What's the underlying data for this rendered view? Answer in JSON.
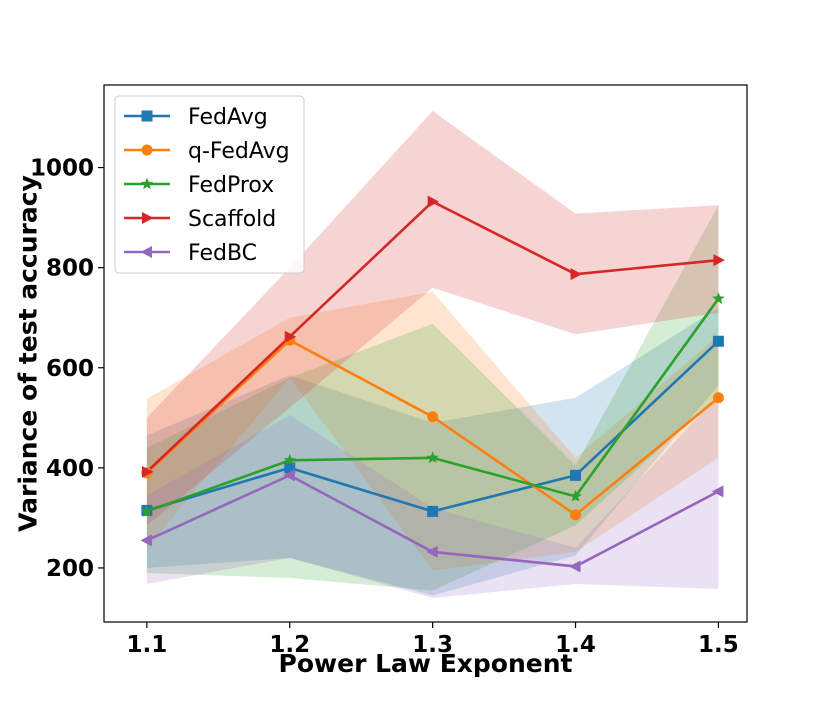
{
  "chart_data": {
    "type": "line",
    "title": "",
    "xlabel": "Power Law Exponent",
    "ylabel": "Variance of test accuracy",
    "x": [
      1.1,
      1.2,
      1.3,
      1.4,
      1.5
    ],
    "x_tick_labels": [
      "1.1",
      "1.2",
      "1.3",
      "1.4",
      "1.5"
    ],
    "y_ticks": [
      200,
      400,
      600,
      800,
      1000
    ],
    "y_tick_labels": [
      "200",
      "400",
      "600",
      "800",
      "1000"
    ],
    "xlim": [
      1.07,
      1.52
    ],
    "ylim": [
      92,
      1165
    ],
    "grid": false,
    "legend_position": "top-left",
    "series": [
      {
        "name": "FedAvg",
        "color": "#1f77b4",
        "marker": "square",
        "values": [
          315,
          400,
          313,
          385,
          653
        ],
        "band_upper": [
          465,
          585,
          490,
          540,
          720
        ],
        "band_lower": [
          200,
          220,
          145,
          225,
          565
        ]
      },
      {
        "name": "q-FedAvg",
        "color": "#ff7f0e",
        "marker": "circle",
        "values": [
          390,
          655,
          502,
          306,
          540
        ],
        "band_upper": [
          538,
          700,
          752,
          420,
          665
        ],
        "band_lower": [
          240,
          580,
          195,
          232,
          420
        ]
      },
      {
        "name": "FedProx",
        "color": "#2ca02c",
        "marker": "star",
        "values": [
          313,
          415,
          420,
          343,
          738
        ],
        "band_upper": [
          440,
          580,
          688,
          405,
          925
        ],
        "band_lower": [
          190,
          180,
          155,
          285,
          545
        ]
      },
      {
        "name": "Scaffold",
        "color": "#d62728",
        "marker": "triangle-right",
        "values": [
          392,
          662,
          932,
          787,
          815
        ],
        "band_upper": [
          500,
          800,
          1113,
          908,
          925
        ],
        "band_lower": [
          285,
          520,
          760,
          667,
          710
        ]
      },
      {
        "name": "FedBC",
        "color": "#9467bd",
        "marker": "triangle-left",
        "values": [
          255,
          385,
          232,
          203,
          353
        ],
        "band_upper": [
          345,
          505,
          320,
          240,
          545
        ],
        "band_lower": [
          168,
          220,
          140,
          168,
          158
        ]
      }
    ]
  }
}
